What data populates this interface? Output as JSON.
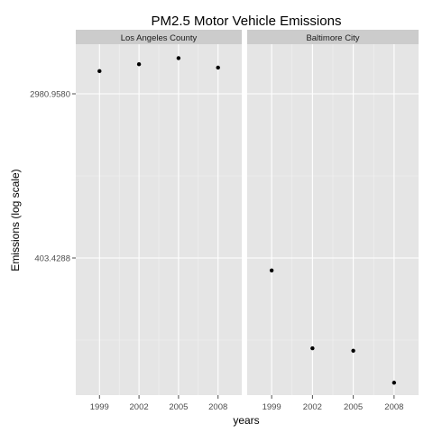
{
  "chart_data": {
    "type": "scatter",
    "title": "PM2.5 Motor Vehicle Emissions",
    "xlabel": "years",
    "ylabel": "Emissions (log scale)",
    "y_scale": "log",
    "y_ticks": [
      "2980.9580",
      "403.4288"
    ],
    "x_ticks": [
      "1999",
      "2002",
      "2005",
      "2008"
    ],
    "panels": [
      {
        "name": "Los Angeles County",
        "x": [
          "1999",
          "2002",
          "2005",
          "2008"
        ],
        "values": [
          3931,
          4274,
          4602,
          4101
        ]
      },
      {
        "name": "Baltimore City",
        "x": [
          "1999",
          "2002",
          "2005",
          "2008"
        ],
        "values": [
          346.8,
          134.3,
          130.4,
          88.3
        ]
      }
    ]
  }
}
